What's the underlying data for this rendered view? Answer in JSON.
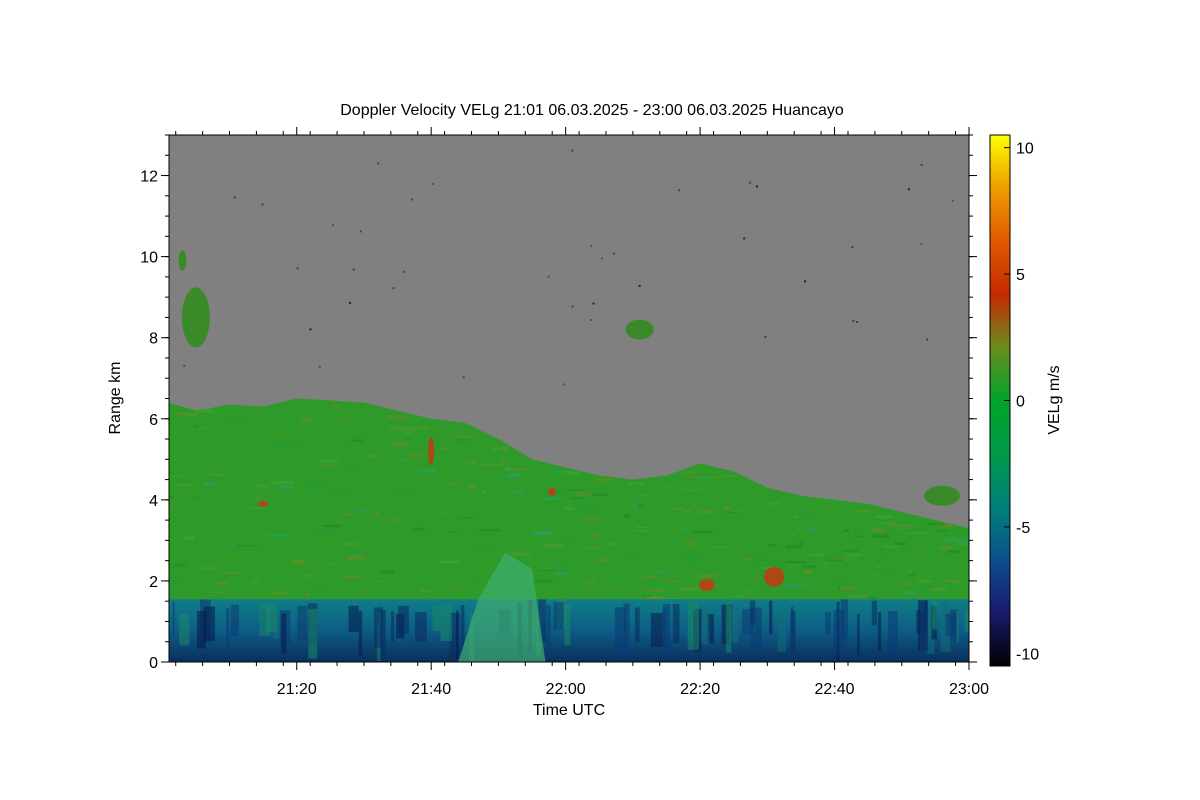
{
  "chart_data": {
    "type": "heatmap",
    "title": "Doppler Velocity VELg   21:01 06.03.2025 - 23:00 06.03.2025 Huancayo",
    "xlabel": "Time UTC",
    "ylabel": "Range km",
    "colorbar_label": "VELg m/s",
    "x_range": [
      "21:01",
      "23:00"
    ],
    "x_ticks": [
      "21:20",
      "21:40",
      "22:00",
      "22:20",
      "22:40",
      "23:00"
    ],
    "x_tick_minutes": [
      80,
      100,
      120,
      140,
      160,
      180
    ],
    "ylim": [
      0,
      13
    ],
    "y_ticks": [
      0,
      2,
      4,
      6,
      8,
      10,
      12
    ],
    "colorbar_range": [
      -10.5,
      10.5
    ],
    "colorbar_ticks": [
      -10,
      -5,
      0,
      5,
      10
    ],
    "colorbar_tick_labels": [
      "-10",
      "-5",
      "0",
      "5",
      "10"
    ],
    "no_signal_color": "#808080",
    "colormap": [
      "#000000",
      "#1a1a6e",
      "#0d4f8c",
      "#00807a",
      "#009a48",
      "#00a32a",
      "#6b8c1e",
      "#c42a00",
      "#e05a00",
      "#ee9c00",
      "#ffff00"
    ],
    "cloud_top": {
      "minutes": [
        61,
        65,
        70,
        75,
        80,
        85,
        90,
        95,
        100,
        105,
        110,
        115,
        120,
        125,
        130,
        135,
        140,
        145,
        150,
        155,
        160,
        165,
        170,
        175,
        180
      ],
      "range_km": [
        6.4,
        6.2,
        6.35,
        6.3,
        6.5,
        6.45,
        6.4,
        6.2,
        6.0,
        5.9,
        5.5,
        5.0,
        4.8,
        4.6,
        4.5,
        4.6,
        4.9,
        4.7,
        4.3,
        4.1,
        4.0,
        3.9,
        3.7,
        3.5,
        3.3
      ]
    },
    "low_layer_top_km": 1.55,
    "velocity_by_layer": [
      {
        "layer": "near-surface",
        "range_km": [
          0.0,
          1.55
        ],
        "typical_m_s": -6.5
      },
      {
        "layer": "main cloud",
        "range_km": [
          1.55,
          6.4
        ],
        "typical_m_s": -1.5
      },
      {
        "layer": "clear air",
        "range_km": [
          6.4,
          13.0
        ],
        "typical_m_s": null
      }
    ]
  }
}
